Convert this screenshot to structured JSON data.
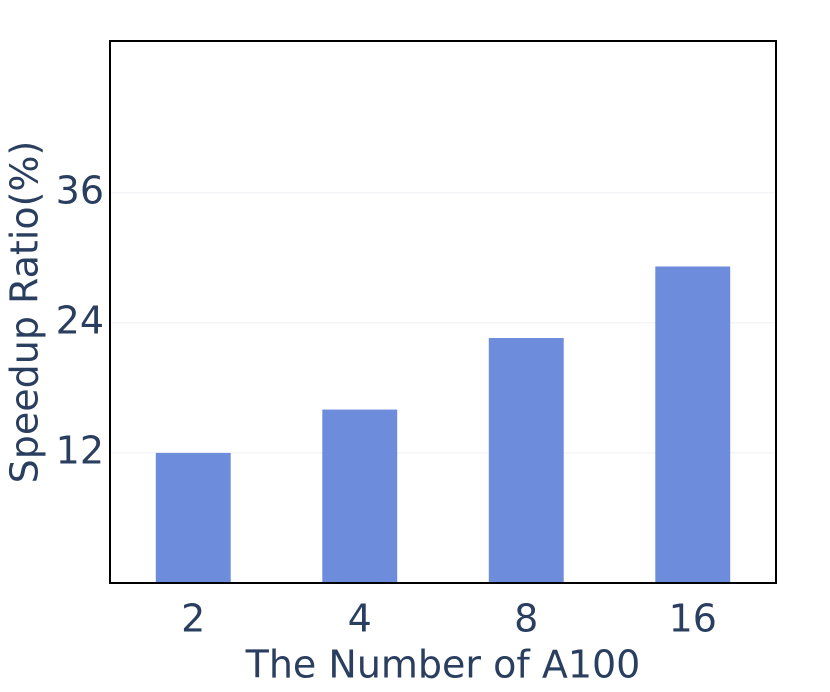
{
  "chart_data": {
    "type": "bar",
    "x_label": "The Number of A100",
    "y_label": "Speedup Ratio(%)",
    "categories": [
      "2",
      "4",
      "8",
      "16"
    ],
    "values": [
      12,
      16,
      22.6,
      29.2
    ],
    "color": "#6d8cdc",
    "ylim": [
      0,
      50
    ],
    "yticks": [
      12,
      24,
      36
    ],
    "grid": true
  }
}
